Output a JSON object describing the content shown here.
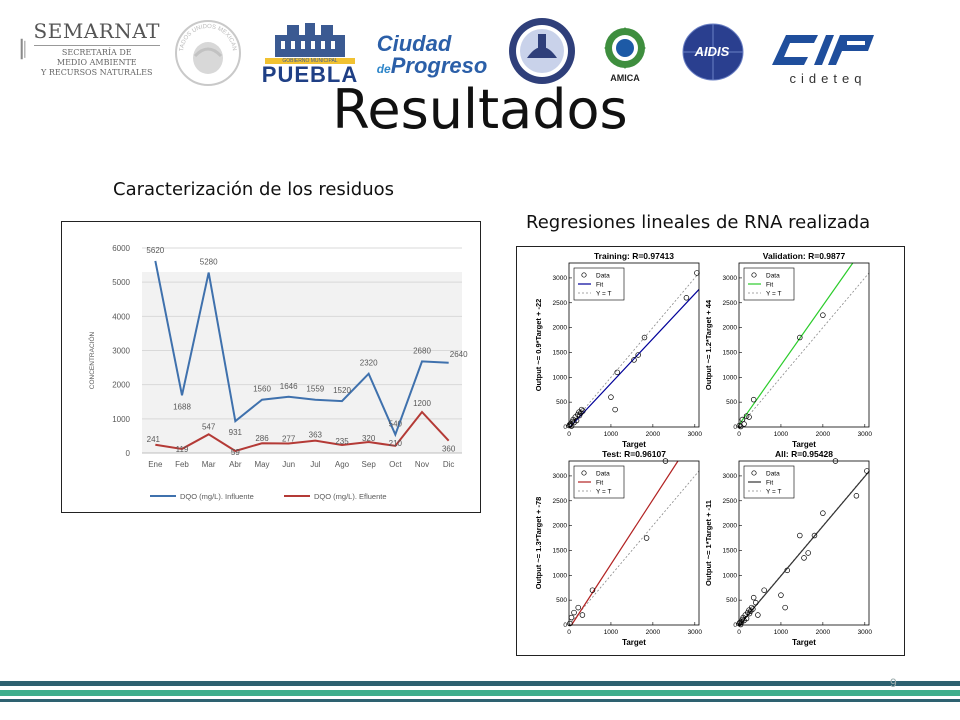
{
  "header": {
    "logos": {
      "semarnat": {
        "name": "SEMARNAT",
        "line1": "SECRETARÍA DE",
        "line2": "MEDIO AMBIENTE",
        "line3": "Y RECURSOS NATURALES"
      },
      "seal_text": "ESTADOS UNIDOS MEXICANOS",
      "puebla": {
        "top": "GOBIERNO MUNICIPAL",
        "name": "PUEBLA"
      },
      "ciudad": {
        "line1": "Ciudad",
        "line2_prefix": "de",
        "line2": "Progreso"
      },
      "amica": "AMICA",
      "aidis": "AIDIS",
      "cideteq": "cideteq"
    }
  },
  "slide": {
    "title": "Resultados",
    "left_subtitle": "Caracterización de los residuos",
    "right_subtitle": "Regresiones lineales de RNA realizada",
    "page_number": "9"
  },
  "colors": {
    "influente": "#3f71ad",
    "efluente": "#b43a36",
    "training": "#000099",
    "validation": "#2bcc2b",
    "test": "#b22222",
    "all": "#333333",
    "footer_dark": "#2e6170",
    "footer_light": "#3fae8c"
  },
  "chart_data": [
    {
      "type": "line",
      "title": "",
      "xlabel": "",
      "ylabel": "CONCENTRACIÓN",
      "ylim": [
        0,
        6000
      ],
      "yticks": [
        0,
        1000,
        2000,
        3000,
        4000,
        5000,
        6000
      ],
      "categories": [
        "Ene",
        "Feb",
        "Mar",
        "Abr",
        "May",
        "Jun",
        "Jul",
        "Ago",
        "Sep",
        "Oct",
        "Nov",
        "Dic"
      ],
      "legend_position": "bottom",
      "grid": true,
      "series": [
        {
          "name": "DQO (mg/L). Influente",
          "values": [
            5620,
            1688,
            5280,
            931,
            1560,
            1646,
            1559,
            1520,
            2320,
            540,
            2680,
            2640
          ]
        },
        {
          "name": "DQO (mg/L). Efluente",
          "values": [
            241,
            119,
            547,
            59,
            286,
            277,
            363,
            235,
            320,
            210,
            1200,
            360
          ]
        }
      ]
    },
    {
      "type": "scatter",
      "title": "Training: R=0.97413",
      "xlabel": "Target",
      "ylabel": "Output ~= 0.9*Target + -22",
      "xlim": [
        0,
        3100
      ],
      "ylim": [
        0,
        3300
      ],
      "xticks": [
        0,
        1000,
        2000,
        3000
      ],
      "yticks": [
        0,
        500,
        1000,
        1500,
        2000,
        2500,
        3000
      ],
      "legend": [
        "Data",
        "Fit",
        "Y = T"
      ],
      "legend_position": "top-left",
      "fit": {
        "slope": 0.9,
        "intercept": -22
      },
      "x": [
        5,
        20,
        40,
        60,
        80,
        100,
        120,
        150,
        180,
        210,
        240,
        250,
        280,
        300,
        330,
        1000,
        1100,
        1150,
        1550,
        1650,
        1800,
        2800,
        3050
      ],
      "y": [
        30,
        50,
        60,
        20,
        110,
        150,
        90,
        200,
        130,
        250,
        300,
        230,
        280,
        350,
        320,
        600,
        350,
        1100,
        1350,
        1450,
        1800,
        2600,
        3100
      ]
    },
    {
      "type": "scatter",
      "title": "Validation: R=0.9877",
      "xlabel": "Target",
      "ylabel": "Output ~= 1.2*Target + 44",
      "xlim": [
        0,
        3100
      ],
      "ylim": [
        0,
        3300
      ],
      "xticks": [
        0,
        1000,
        2000,
        3000
      ],
      "yticks": [
        0,
        500,
        1000,
        1500,
        2000,
        2500,
        3000
      ],
      "legend": [
        "Data",
        "Fit",
        "Y = T"
      ],
      "legend_position": "top-left",
      "fit": {
        "slope": 1.2,
        "intercept": 44
      },
      "x": [
        10,
        40,
        80,
        120,
        180,
        240,
        350,
        1450,
        2000
      ],
      "y": [
        30,
        10,
        150,
        60,
        220,
        200,
        550,
        1800,
        2250
      ]
    },
    {
      "type": "scatter",
      "title": "Test: R=0.96107",
      "xlabel": "Target",
      "ylabel": "Output ~= 1.3*Target + -78",
      "xlim": [
        0,
        3100
      ],
      "ylim": [
        0,
        3300
      ],
      "xticks": [
        0,
        1000,
        2000,
        3000
      ],
      "yticks": [
        0,
        500,
        1000,
        1500,
        2000,
        2500,
        3000
      ],
      "legend": [
        "Data",
        "Fit",
        "Y = T"
      ],
      "legend_position": "top-left",
      "fit": {
        "slope": 1.3,
        "intercept": -78
      },
      "x": [
        20,
        60,
        120,
        220,
        320,
        560,
        1850,
        2300
      ],
      "y": [
        30,
        150,
        250,
        350,
        200,
        700,
        1750,
        3300
      ]
    },
    {
      "type": "scatter",
      "title": "All: R=0.95428",
      "xlabel": "Target",
      "ylabel": "Output ~= 1*Target + -11",
      "xlim": [
        0,
        3100
      ],
      "ylim": [
        0,
        3300
      ],
      "xticks": [
        0,
        1000,
        2000,
        3000
      ],
      "yticks": [
        0,
        500,
        1000,
        1500,
        2000,
        2500,
        3000
      ],
      "legend": [
        "Data",
        "Fit",
        "Y = T"
      ],
      "legend_position": "top-left",
      "fit": {
        "slope": 1.0,
        "intercept": -11
      },
      "x": [
        5,
        20,
        40,
        60,
        80,
        100,
        120,
        150,
        180,
        210,
        240,
        250,
        280,
        300,
        330,
        350,
        400,
        450,
        600,
        1000,
        1100,
        1150,
        1450,
        1550,
        1650,
        1800,
        2000,
        2300,
        2800,
        3050
      ],
      "y": [
        30,
        50,
        10,
        60,
        110,
        150,
        90,
        200,
        130,
        250,
        300,
        230,
        280,
        350,
        320,
        550,
        450,
        200,
        700,
        600,
        350,
        1100,
        1800,
        1350,
        1450,
        1800,
        2250,
        3300,
        2600,
        3100
      ]
    }
  ]
}
